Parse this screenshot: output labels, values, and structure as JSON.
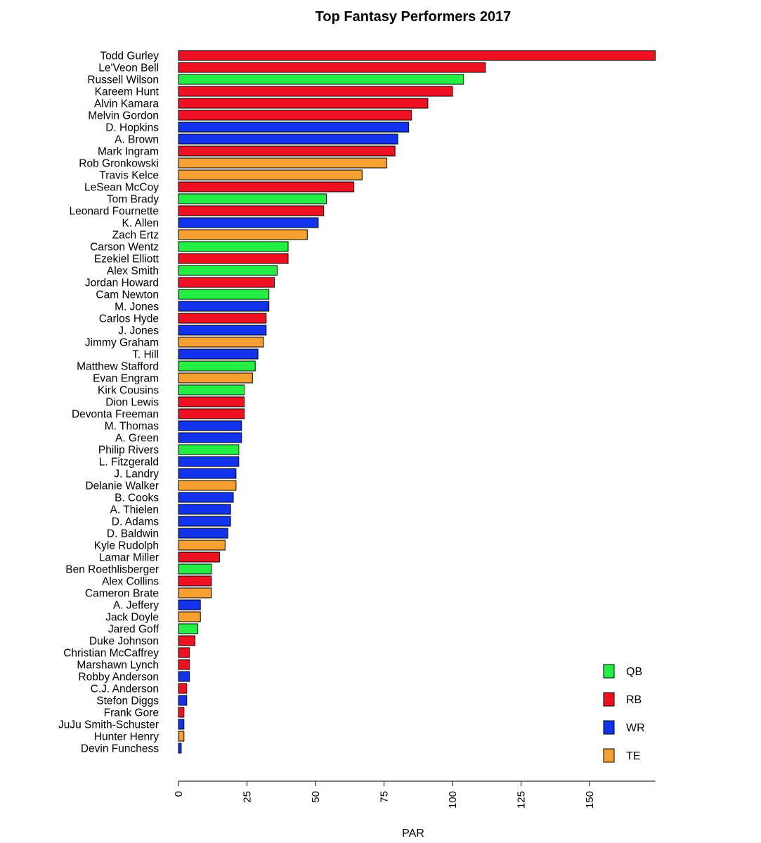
{
  "chart_data": {
    "type": "bar",
    "orientation": "horizontal",
    "title": "Top Fantasy Performers 2017",
    "xlabel": "PAR",
    "ylabel": "",
    "xlim": [
      0,
      174
    ],
    "xticks": [
      "0",
      "25",
      "50",
      "75",
      "100",
      "125",
      "150"
    ],
    "grid": false,
    "legend": {
      "placement": "bottom-right",
      "entries": [
        {
          "label": "QB",
          "color": "#22ee44"
        },
        {
          "label": "RB",
          "color": "#ee1122"
        },
        {
          "label": "WR",
          "color": "#1133ee"
        },
        {
          "label": "TE",
          "color": "#f5a030"
        }
      ]
    },
    "position_colors": {
      "QB": "#22ee44",
      "RB": "#ee1122",
      "WR": "#1133ee",
      "TE": "#f5a030"
    },
    "bars": [
      {
        "name": "Todd Gurley",
        "value": 174,
        "position": "RB"
      },
      {
        "name": "Le'Veon Bell",
        "value": 112,
        "position": "RB"
      },
      {
        "name": "Russell Wilson",
        "value": 104,
        "position": "QB"
      },
      {
        "name": "Kareem Hunt",
        "value": 100,
        "position": "RB"
      },
      {
        "name": "Alvin Kamara",
        "value": 91,
        "position": "RB"
      },
      {
        "name": "Melvin Gordon",
        "value": 85,
        "position": "RB"
      },
      {
        "name": "D. Hopkins",
        "value": 84,
        "position": "WR"
      },
      {
        "name": "A. Brown",
        "value": 80,
        "position": "WR"
      },
      {
        "name": "Mark Ingram",
        "value": 79,
        "position": "RB"
      },
      {
        "name": "Rob Gronkowski",
        "value": 76,
        "position": "TE"
      },
      {
        "name": "Travis Kelce",
        "value": 67,
        "position": "TE"
      },
      {
        "name": "LeSean McCoy",
        "value": 64,
        "position": "RB"
      },
      {
        "name": "Tom Brady",
        "value": 54,
        "position": "QB"
      },
      {
        "name": "Leonard Fournette",
        "value": 53,
        "position": "RB"
      },
      {
        "name": "K. Allen",
        "value": 51,
        "position": "WR"
      },
      {
        "name": "Zach Ertz",
        "value": 47,
        "position": "TE"
      },
      {
        "name": "Carson Wentz",
        "value": 40,
        "position": "QB"
      },
      {
        "name": "Ezekiel Elliott",
        "value": 40,
        "position": "RB"
      },
      {
        "name": "Alex Smith",
        "value": 36,
        "position": "QB"
      },
      {
        "name": "Jordan Howard",
        "value": 35,
        "position": "RB"
      },
      {
        "name": "Cam Newton",
        "value": 33,
        "position": "QB"
      },
      {
        "name": "M. Jones",
        "value": 33,
        "position": "WR"
      },
      {
        "name": "Carlos Hyde",
        "value": 32,
        "position": "RB"
      },
      {
        "name": "J. Jones",
        "value": 32,
        "position": "WR"
      },
      {
        "name": "Jimmy Graham",
        "value": 31,
        "position": "TE"
      },
      {
        "name": "T. Hill",
        "value": 29,
        "position": "WR"
      },
      {
        "name": "Matthew Stafford",
        "value": 28,
        "position": "QB"
      },
      {
        "name": "Evan Engram",
        "value": 27,
        "position": "TE"
      },
      {
        "name": "Kirk Cousins",
        "value": 24,
        "position": "QB"
      },
      {
        "name": "Dion Lewis",
        "value": 24,
        "position": "RB"
      },
      {
        "name": "Devonta Freeman",
        "value": 24,
        "position": "RB"
      },
      {
        "name": "M. Thomas",
        "value": 23,
        "position": "WR"
      },
      {
        "name": "A. Green",
        "value": 23,
        "position": "WR"
      },
      {
        "name": "Philip Rivers",
        "value": 22,
        "position": "QB"
      },
      {
        "name": "L. Fitzgerald",
        "value": 22,
        "position": "WR"
      },
      {
        "name": "J. Landry",
        "value": 21,
        "position": "WR"
      },
      {
        "name": "Delanie Walker",
        "value": 21,
        "position": "TE"
      },
      {
        "name": "B. Cooks",
        "value": 20,
        "position": "WR"
      },
      {
        "name": "A. Thielen",
        "value": 19,
        "position": "WR"
      },
      {
        "name": "D. Adams",
        "value": 19,
        "position": "WR"
      },
      {
        "name": "D. Baldwin",
        "value": 18,
        "position": "WR"
      },
      {
        "name": "Kyle Rudolph",
        "value": 17,
        "position": "TE"
      },
      {
        "name": "Lamar Miller",
        "value": 15,
        "position": "RB"
      },
      {
        "name": "Ben Roethlisberger",
        "value": 12,
        "position": "QB"
      },
      {
        "name": "Alex Collins",
        "value": 12,
        "position": "RB"
      },
      {
        "name": "Cameron Brate",
        "value": 12,
        "position": "TE"
      },
      {
        "name": "A. Jeffery",
        "value": 8,
        "position": "WR"
      },
      {
        "name": "Jack Doyle",
        "value": 8,
        "position": "TE"
      },
      {
        "name": "Jared Goff",
        "value": 7,
        "position": "QB"
      },
      {
        "name": "Duke Johnson",
        "value": 6,
        "position": "RB"
      },
      {
        "name": "Christian McCaffrey",
        "value": 4,
        "position": "RB"
      },
      {
        "name": "Marshawn Lynch",
        "value": 4,
        "position": "RB"
      },
      {
        "name": "Robby Anderson",
        "value": 4,
        "position": "WR"
      },
      {
        "name": "C.J. Anderson",
        "value": 3,
        "position": "RB"
      },
      {
        "name": "Stefon Diggs",
        "value": 3,
        "position": "WR"
      },
      {
        "name": "Frank Gore",
        "value": 2,
        "position": "RB"
      },
      {
        "name": "JuJu Smith-Schuster",
        "value": 2,
        "position": "WR"
      },
      {
        "name": "Hunter Henry",
        "value": 2,
        "position": "TE"
      },
      {
        "name": "Devin Funchess",
        "value": 1,
        "position": "WR"
      }
    ]
  }
}
